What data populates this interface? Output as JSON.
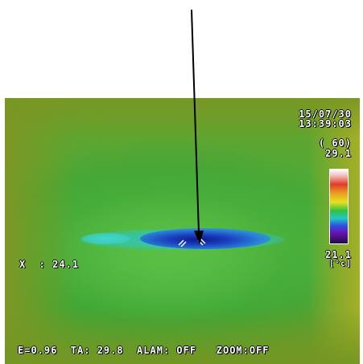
{
  "overlay": {
    "date": "15/07/30",
    "time": "13:39:03",
    "mode": "( 60)",
    "scale_max": "29.1",
    "scale_min": "21.1",
    "unit": "[°c]",
    "readout": "X  : 24.1",
    "status_line": "E=0.96  TA: 29.8  ALAM: OFF   ZOOM:OFF"
  },
  "colors": {
    "background_green": "#47ad3a",
    "cold_spot": "#1a3fbf",
    "arrow": "#000000"
  },
  "icons": {
    "pointer": "arrow-pointer-icon",
    "cursor": "crosshair-cursor-icon"
  }
}
